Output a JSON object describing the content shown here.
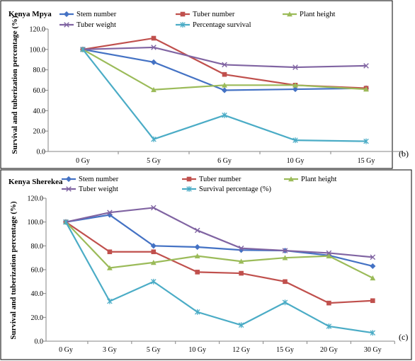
{
  "chart_data": [
    {
      "type": "line",
      "title": "Kenya Mpya",
      "panel_label": "(b)",
      "ylabel": "Survival and tuberization percentage (%)",
      "categories": [
        "0 Gy",
        "5 Gy",
        "6 Gy",
        "10 Gy",
        "15 Gy"
      ],
      "ylim": [
        0,
        120
      ],
      "yticks": [
        "0.0",
        "20.0",
        "40.0",
        "60.0",
        "80.0",
        "100.0",
        "120.0"
      ],
      "grid": false,
      "legend": "top",
      "series": [
        {
          "name": "Stem number",
          "color": "#4472C4",
          "marker": "diamond",
          "values": [
            100,
            87.5,
            60,
            61,
            62
          ]
        },
        {
          "name": "Tuber number",
          "color": "#C0504D",
          "marker": "square",
          "values": [
            100,
            111,
            75.5,
            65,
            62
          ]
        },
        {
          "name": "Plant height",
          "color": "#9BBB59",
          "marker": "triangle",
          "values": [
            100,
            60.5,
            65,
            65,
            61
          ]
        },
        {
          "name": "Tuber weight",
          "color": "#8064A2",
          "marker": "x",
          "values": [
            100,
            102,
            85,
            82.5,
            84
          ]
        },
        {
          "name": "Percentage survival",
          "color": "#4BACC6",
          "marker": "star",
          "values": [
            100,
            12,
            35.5,
            11,
            10
          ]
        }
      ]
    },
    {
      "type": "line",
      "title": "Kenya Sherekea",
      "panel_label": "(c)",
      "ylabel": "Survival and tuberization percentage (%)",
      "categories": [
        "0 Gy",
        "3 Gy",
        "5 Gy",
        "10 Gy",
        "12 Gy",
        "15 Gy",
        "20 Gy",
        "30 Gy"
      ],
      "ylim": [
        0,
        120
      ],
      "yticks": [
        "0.0",
        "20.0",
        "40.0",
        "60.0",
        "80.0",
        "100.0",
        "120.0"
      ],
      "grid": false,
      "legend": "top",
      "series": [
        {
          "name": "Stem number",
          "color": "#4472C4",
          "marker": "diamond",
          "values": [
            100,
            106,
            80,
            79,
            76.5,
            76,
            72,
            63
          ]
        },
        {
          "name": "Tuber number",
          "color": "#C0504D",
          "marker": "square",
          "values": [
            100,
            75,
            75,
            58,
            57,
            50,
            32,
            34
          ]
        },
        {
          "name": "Plant height",
          "color": "#9BBB59",
          "marker": "triangle",
          "values": [
            100,
            61.5,
            66,
            71.5,
            67,
            70,
            71.5,
            53
          ]
        },
        {
          "name": "Tuber weight",
          "color": "#8064A2",
          "marker": "x",
          "values": [
            100,
            108,
            112,
            93,
            78,
            76,
            74,
            70.5
          ]
        },
        {
          "name": "Survival percentage (%)",
          "color": "#4BACC6",
          "marker": "star",
          "values": [
            100,
            33.5,
            50,
            24.5,
            13.5,
            32.5,
            12.5,
            7
          ]
        }
      ]
    }
  ]
}
